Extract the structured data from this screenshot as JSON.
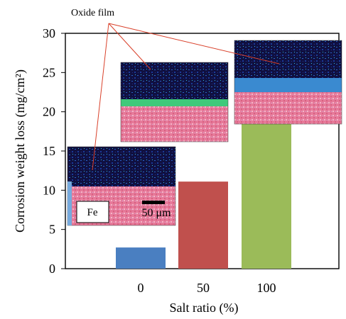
{
  "chart_data": {
    "type": "bar",
    "categories": [
      "0",
      "50",
      "100"
    ],
    "values": [
      2.7,
      11.1,
      18.7
    ],
    "bar_colors": [
      "#4a7fc1",
      "#c0504d",
      "#9bbb59"
    ],
    "xlabel": "Salt ratio (%)",
    "ylabel": "Corrosion weight loss (mg/cm²)",
    "ylim": [
      0,
      30
    ],
    "yticks": [
      "0",
      "5",
      "10",
      "15",
      "20",
      "25",
      "30"
    ],
    "grid": false,
    "annotations": {
      "oxide_label": "Oxide film",
      "element_label": "Fe",
      "scale_bar_label": "50 μm"
    }
  }
}
